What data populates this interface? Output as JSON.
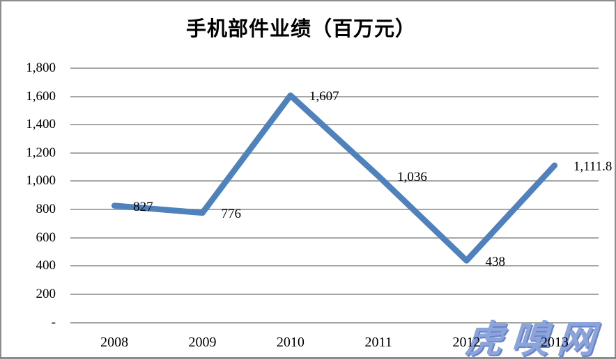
{
  "chart_data": {
    "type": "line",
    "title": "手机部件业绩（百万元）",
    "categories": [
      "2008",
      "2009",
      "2010",
      "2011",
      "2012",
      "2013"
    ],
    "series": [
      {
        "name": "手机部件业绩",
        "values": [
          827,
          776,
          1607,
          1036,
          438,
          1111.8
        ]
      }
    ],
    "data_labels": [
      "827",
      "776",
      "1,607",
      "1,036",
      "438",
      "1,111.8"
    ],
    "xlabel": "",
    "ylabel": "",
    "ylim": [
      0,
      1800
    ],
    "y_tick_step": 200,
    "y_tick_labels_bottom_up": [
      "-",
      "200",
      "400",
      "600",
      "800",
      "1,000",
      "1,200",
      "1,400",
      "1,600",
      "1,800"
    ],
    "grid": true,
    "legend_position": "none",
    "line_color": "#4F81BD",
    "gridline_color": "#A6A6A6",
    "text_color": "#000000",
    "background_color": "#FFFFFF",
    "border_color": "#8C8C8C"
  },
  "watermark": {
    "text": "虎嗅网",
    "color": "#8CA4DC",
    "shadow_color": "#6B83C6"
  }
}
